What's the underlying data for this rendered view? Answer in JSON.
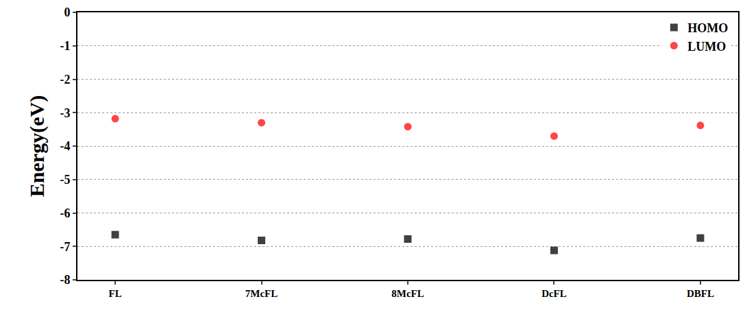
{
  "chart_data": {
    "type": "scatter",
    "y_label": "Energy(eV)",
    "categories": [
      "FL",
      "7McFL",
      "8McFL",
      "DcFL",
      "DBFL"
    ],
    "series": [
      {
        "name": "HOMO",
        "color": "#404040",
        "marker": "square",
        "values": [
          -6.65,
          -6.82,
          -6.78,
          -7.12,
          -6.75
        ]
      },
      {
        "name": "LUMO",
        "color": "#ff4545",
        "marker": "circle",
        "values": [
          -3.18,
          -3.3,
          -3.42,
          -3.7,
          -3.38
        ]
      }
    ],
    "ylim": [
      -8,
      0
    ],
    "yticks": [
      -8,
      -7,
      -6,
      -5,
      -4,
      -3,
      -2,
      -1,
      0
    ],
    "grid": true,
    "legend": "top-right"
  }
}
